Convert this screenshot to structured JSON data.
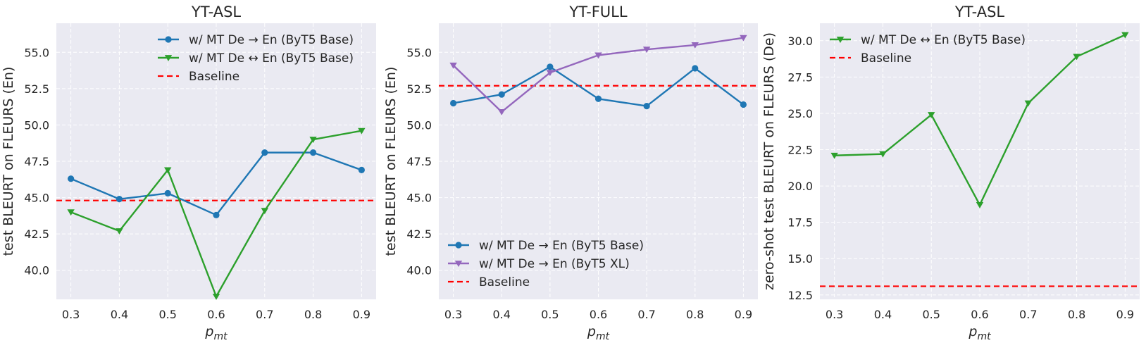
{
  "chart_data": [
    {
      "type": "line",
      "title": "YT-ASL",
      "xlabel": "p",
      "xlabel_sub": "mt",
      "ylabel": "test BLEURT on FLEURS (En)",
      "x": [
        0.3,
        0.4,
        0.5,
        0.6,
        0.7,
        0.8,
        0.9
      ],
      "x_ticks": [
        "0.3",
        "0.4",
        "0.5",
        "0.6",
        "0.7",
        "0.8",
        "0.9"
      ],
      "xlim": [
        0.27,
        0.93
      ],
      "ylim": [
        38.0,
        57.0
      ],
      "y_ticks": [
        "40.0",
        "42.5",
        "45.0",
        "47.5",
        "50.0",
        "52.5",
        "55.0"
      ],
      "y_tick_values": [
        40.0,
        42.5,
        45.0,
        47.5,
        50.0,
        52.5,
        55.0
      ],
      "grid": true,
      "legend_position": "top-right",
      "series": [
        {
          "name": "w/ MT De → En (ByT5 Base)",
          "color": "#1f77b4",
          "marker": "circle",
          "values": [
            46.3,
            44.9,
            45.3,
            43.8,
            48.1,
            48.1,
            46.9
          ]
        },
        {
          "name": "w/ MT De ↔ En (ByT5 Base)",
          "color": "#2ca02c",
          "marker": "triangle-down",
          "values": [
            44.0,
            42.7,
            46.9,
            38.2,
            44.1,
            49.0,
            49.6
          ]
        }
      ],
      "baseline": {
        "name": "Baseline",
        "value": 44.8,
        "color": "#ff0000"
      }
    },
    {
      "type": "line",
      "title": "YT-FULL",
      "xlabel": "p",
      "xlabel_sub": "mt",
      "ylabel": "test BLEURT on FLEURS (En)",
      "x": [
        0.3,
        0.4,
        0.5,
        0.6,
        0.7,
        0.8,
        0.9
      ],
      "x_ticks": [
        "0.3",
        "0.4",
        "0.5",
        "0.6",
        "0.7",
        "0.8",
        "0.9"
      ],
      "xlim": [
        0.27,
        0.93
      ],
      "ylim": [
        38.0,
        57.0
      ],
      "y_ticks": [
        "40.0",
        "42.5",
        "45.0",
        "47.5",
        "50.0",
        "52.5",
        "55.0"
      ],
      "y_tick_values": [
        40.0,
        42.5,
        45.0,
        47.5,
        50.0,
        52.5,
        55.0
      ],
      "grid": true,
      "legend_position": "bottom-left",
      "series": [
        {
          "name": "w/ MT De → En (ByT5 Base)",
          "color": "#1f77b4",
          "marker": "circle",
          "values": [
            51.5,
            52.1,
            54.0,
            51.8,
            51.3,
            53.9,
            51.4
          ]
        },
        {
          "name": "w/ MT De → En (ByT5 XL)",
          "color": "#9467bd",
          "marker": "triangle-down",
          "values": [
            54.1,
            50.9,
            53.6,
            54.8,
            55.2,
            55.5,
            56.0
          ]
        }
      ],
      "baseline": {
        "name": "Baseline",
        "value": 52.7,
        "color": "#ff0000"
      }
    },
    {
      "type": "line",
      "title": "YT-ASL",
      "xlabel": "p",
      "xlabel_sub": "mt",
      "ylabel": "zero-shot test BLEURT on FLEURS (De)",
      "x": [
        0.3,
        0.4,
        0.5,
        0.6,
        0.7,
        0.8,
        0.9
      ],
      "x_ticks": [
        "0.3",
        "0.4",
        "0.5",
        "0.6",
        "0.7",
        "0.8",
        "0.9"
      ],
      "xlim": [
        0.27,
        0.93
      ],
      "ylim": [
        12.2,
        31.2
      ],
      "y_ticks": [
        "12.5",
        "15.0",
        "17.5",
        "20.0",
        "22.5",
        "25.0",
        "27.5",
        "30.0"
      ],
      "y_tick_values": [
        12.5,
        15.0,
        17.5,
        20.0,
        22.5,
        25.0,
        27.5,
        30.0
      ],
      "grid": true,
      "legend_position": "top-left",
      "series": [
        {
          "name": "w/ MT De ↔ En (ByT5 Base)",
          "color": "#2ca02c",
          "marker": "triangle-down",
          "values": [
            22.1,
            22.2,
            24.9,
            18.7,
            25.7,
            28.9,
            30.4
          ]
        }
      ],
      "baseline": {
        "name": "Baseline",
        "value": 13.1,
        "color": "#ff0000"
      }
    }
  ],
  "colors": {
    "panel_background": "#eaeaf2",
    "grid": "#ffffff"
  }
}
